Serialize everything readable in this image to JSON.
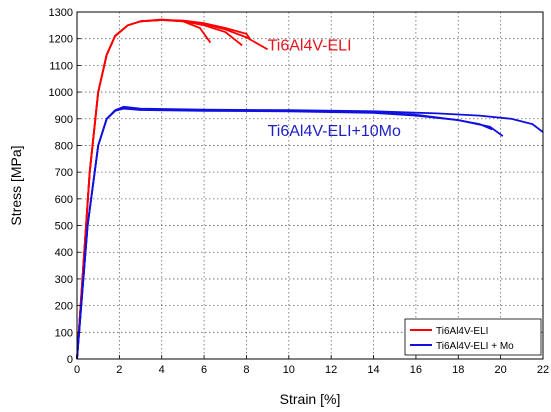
{
  "chart_data": {
    "type": "line",
    "title": "",
    "xlabel": "Strain [%]",
    "ylabel": "Stress [MPa]",
    "xlim": [
      0,
      22
    ],
    "ylim": [
      0,
      1300
    ],
    "xticks": [
      0,
      2,
      4,
      6,
      8,
      10,
      12,
      14,
      16,
      18,
      20,
      22
    ],
    "yticks": [
      0,
      100,
      200,
      300,
      400,
      500,
      600,
      700,
      800,
      900,
      1000,
      1100,
      1200,
      1300
    ],
    "grid": true,
    "legend_placement": "bottom-right",
    "annotations": [
      {
        "text": "Ti6Al4V-ELI",
        "x": 9.0,
        "y": 1155,
        "color": "#e8141b"
      },
      {
        "text": "Ti6Al4V-ELI+10Mo",
        "x": 9.0,
        "y": 835,
        "color": "#2020c8"
      }
    ],
    "series": [
      {
        "name": "Ti6Al4V-ELI",
        "color": "#ff0000",
        "curves": [
          [
            [
              0,
              0
            ],
            [
              0.6,
              700
            ],
            [
              1.0,
              1000
            ],
            [
              1.4,
              1140
            ],
            [
              1.8,
              1210
            ],
            [
              2.4,
              1250
            ],
            [
              3.0,
              1265
            ],
            [
              4.0,
              1272
            ],
            [
              5.0,
              1265
            ],
            [
              5.8,
              1240
            ],
            [
              6.3,
              1185
            ]
          ],
          [
            [
              0,
              0
            ],
            [
              0.6,
              700
            ],
            [
              1.0,
              1000
            ],
            [
              1.4,
              1140
            ],
            [
              1.8,
              1210
            ],
            [
              2.4,
              1250
            ],
            [
              3.0,
              1265
            ],
            [
              4.0,
              1270
            ],
            [
              5.0,
              1265
            ],
            [
              6.0,
              1250
            ],
            [
              7.0,
              1225
            ],
            [
              7.8,
              1175
            ]
          ],
          [
            [
              0,
              0
            ],
            [
              0.6,
              700
            ],
            [
              1.0,
              1000
            ],
            [
              1.4,
              1140
            ],
            [
              1.8,
              1210
            ],
            [
              2.4,
              1250
            ],
            [
              3.0,
              1265
            ],
            [
              4.0,
              1270
            ],
            [
              5.0,
              1268
            ],
            [
              6.0,
              1258
            ],
            [
              7.0,
              1240
            ],
            [
              8.0,
              1218
            ],
            [
              8.2,
              1195
            ]
          ],
          [
            [
              0,
              0
            ],
            [
              0.6,
              700
            ],
            [
              1.0,
              1000
            ],
            [
              1.4,
              1140
            ],
            [
              1.8,
              1210
            ],
            [
              2.4,
              1250
            ],
            [
              3.0,
              1265
            ],
            [
              4.0,
              1270
            ],
            [
              5.0,
              1266
            ],
            [
              6.0,
              1255
            ],
            [
              7.0,
              1235
            ],
            [
              8.0,
              1205
            ],
            [
              9.0,
              1160
            ]
          ]
        ]
      },
      {
        "name": "Ti6Al4V-ELI + Mo",
        "color": "#1010e0",
        "curves": [
          [
            [
              0,
              0
            ],
            [
              0.5,
              500
            ],
            [
              1.0,
              800
            ],
            [
              1.4,
              900
            ],
            [
              1.8,
              930
            ],
            [
              2.2,
              940
            ],
            [
              3,
              935
            ],
            [
              6,
              932
            ],
            [
              10,
              930
            ],
            [
              14,
              925
            ],
            [
              16,
              915
            ],
            [
              18,
              895
            ],
            [
              19,
              880
            ],
            [
              19.6,
              860
            ]
          ],
          [
            [
              0,
              0
            ],
            [
              0.5,
              500
            ],
            [
              1.0,
              800
            ],
            [
              1.4,
              900
            ],
            [
              1.8,
              930
            ],
            [
              2.2,
              938
            ],
            [
              3,
              933
            ],
            [
              6,
              930
            ],
            [
              10,
              928
            ],
            [
              14,
              922
            ],
            [
              16,
              912
            ],
            [
              18,
              895
            ],
            [
              19.5,
              870
            ],
            [
              20.1,
              835
            ]
          ],
          [
            [
              0,
              0
            ],
            [
              0.5,
              500
            ],
            [
              1.0,
              800
            ],
            [
              1.4,
              900
            ],
            [
              1.8,
              932
            ],
            [
              2.2,
              945
            ],
            [
              3,
              938
            ],
            [
              6,
              934
            ],
            [
              10,
              932
            ],
            [
              14,
              928
            ],
            [
              17,
              920
            ],
            [
              19,
              912
            ],
            [
              20.5,
              900
            ],
            [
              21.5,
              880
            ],
            [
              22,
              850
            ]
          ]
        ]
      }
    ]
  }
}
